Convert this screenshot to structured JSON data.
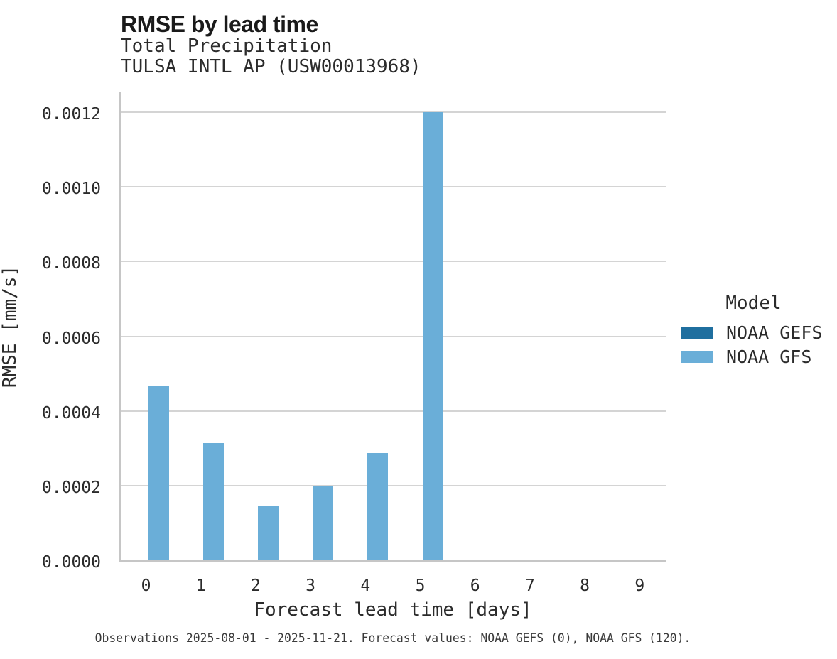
{
  "header": {
    "title": "RMSE by lead time",
    "subtitle_line1": "Total Precipitation",
    "subtitle_line2": "TULSA INTL AP (USW00013968)"
  },
  "chart_data": {
    "type": "bar",
    "title": "RMSE by lead time",
    "subtitle": [
      "Total Precipitation",
      "TULSA INTL AP (USW00013968)"
    ],
    "categories": [
      "0",
      "1",
      "2",
      "3",
      "4",
      "5",
      "6",
      "7",
      "8",
      "9"
    ],
    "series": [
      {
        "name": "NOAA GEFS",
        "color": "#1f6f9f",
        "values": [
          null,
          null,
          null,
          null,
          null,
          null,
          null,
          null,
          null,
          null
        ]
      },
      {
        "name": "NOAA GFS",
        "color": "#6aaed8",
        "values": [
          0.000467,
          0.000313,
          0.000145,
          0.000198,
          0.000288,
          0.0012,
          null,
          null,
          null,
          null
        ]
      }
    ],
    "xlabel": "Forecast lead time [days]",
    "ylabel": "RMSE [mm/s]",
    "ylim": [
      0,
      0.00126
    ],
    "y_ticks": [
      {
        "value": 0.0,
        "label": "0.0000"
      },
      {
        "value": 0.0002,
        "label": "0.0002"
      },
      {
        "value": 0.0004,
        "label": "0.0004"
      },
      {
        "value": 0.0006,
        "label": "0.0006"
      },
      {
        "value": 0.0008,
        "label": "0.0008"
      },
      {
        "value": 0.001,
        "label": "0.0010"
      },
      {
        "value": 0.0012,
        "label": "0.0012"
      }
    ],
    "grid": "horizontal",
    "legend_position": "right",
    "bar_layout": "dodged"
  },
  "legend": {
    "title": "Model",
    "items": [
      {
        "label": "NOAA GEFS",
        "color": "#1f6f9f"
      },
      {
        "label": "NOAA GFS",
        "color": "#6aaed8"
      }
    ]
  },
  "caption": "Observations 2025-08-01 - 2025-11-21. Forecast values: NOAA GEFS (0), NOAA GFS (120)."
}
